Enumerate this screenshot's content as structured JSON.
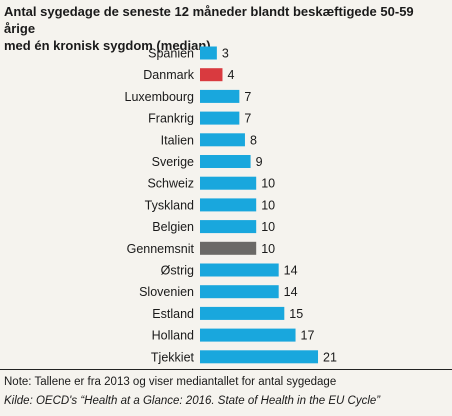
{
  "chart_data": {
    "type": "bar",
    "orientation": "horizontal",
    "title_lines": [
      "Antal sygedage de seneste 12 måneder blandt beskæftigede 50-59 årige",
      "med én kronisk sygdom (median)"
    ],
    "categories": [
      "Spanien",
      "Danmark",
      "Luxembourg",
      "Frankrig",
      "Italien",
      "Sverige",
      "Schweiz",
      "Tyskland",
      "Belgien",
      "Gennemsnit",
      "Østrig",
      "Slovenien",
      "Estland",
      "Holland",
      "Tjekkiet"
    ],
    "values": [
      3,
      4,
      7,
      7,
      8,
      9,
      10,
      10,
      10,
      10,
      14,
      14,
      15,
      17,
      21
    ],
    "data_labels": [
      "3",
      "4",
      "7",
      "7",
      "8",
      "9",
      "10",
      "10",
      "10",
      "10",
      "14",
      "14",
      "15",
      "17",
      "21"
    ],
    "highlight": {
      "Danmark": "#d93a3f",
      "Gennemsnit": "#6b6966"
    },
    "bar_color": "#19a7dd",
    "xlim": [
      0,
      21
    ],
    "grid": false,
    "legend": "none",
    "note": "Note: Tallene er fra 2013 og viser mediantallet for antal sygedage",
    "source": "Kilde: OECD's “Health at a Glance: 2016. State of Health in the EU Cycle”"
  }
}
